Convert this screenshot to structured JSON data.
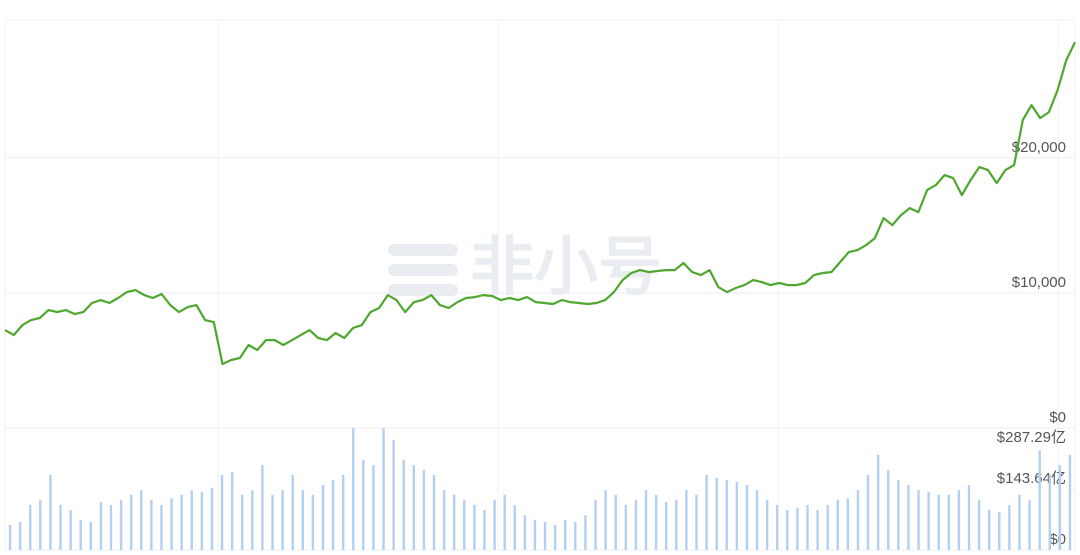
{
  "watermark": "非小号",
  "chart_data": [
    {
      "type": "line",
      "color": "#4ea72e",
      "values": [
        7250,
        6880,
        7620,
        7990,
        8140,
        8730,
        8580,
        8730,
        8440,
        8580,
        9250,
        9470,
        9250,
        9620,
        10060,
        10210,
        9840,
        9620,
        9920,
        9100,
        8580,
        8950,
        9100,
        7990,
        7840,
        4740,
        5030,
        5180,
        6140,
        5770,
        6510,
        6510,
        6140,
        6510,
        6880,
        7250,
        6660,
        6510,
        7030,
        6660,
        7400,
        7620,
        8580,
        8880,
        9840,
        9470,
        8580,
        9320,
        9470,
        9840,
        9100,
        8880,
        9320,
        9620,
        9690,
        9840,
        9770,
        9470,
        9620,
        9470,
        9690,
        9320,
        9250,
        9180,
        9470,
        9320,
        9250,
        9180,
        9250,
        9470,
        10060,
        10950,
        11470,
        11690,
        11540,
        11620,
        11690,
        11690,
        12210,
        11540,
        11320,
        11690,
        10430,
        10060,
        10360,
        10580,
        10950,
        10800,
        10580,
        10730,
        10580,
        10580,
        10730,
        11320,
        11470,
        11540,
        12280,
        13020,
        13170,
        13540,
        14060,
        15540,
        15020,
        15760,
        16280,
        15980,
        17610,
        17980,
        18720,
        18500,
        17240,
        18350,
        19310,
        19090,
        18130,
        19090,
        19460,
        22790,
        23900,
        22940,
        23380,
        25010,
        27230,
        28560
      ],
      "ylim": [
        0,
        30200
      ],
      "yticks": [
        {
          "value": 0,
          "label": "$0"
        },
        {
          "value": 10000,
          "label": "$10,000"
        },
        {
          "value": 20000,
          "label": "$20,000"
        }
      ],
      "grid": true
    },
    {
      "type": "bar",
      "color": "#b3cff1",
      "values": [
        59,
        66,
        106,
        118,
        177,
        106,
        94,
        71,
        66,
        113,
        106,
        118,
        130,
        141,
        118,
        106,
        122,
        130,
        141,
        137,
        146,
        177,
        184,
        130,
        141,
        200,
        130,
        141,
        177,
        141,
        130,
        153,
        165,
        177,
        287,
        212,
        200,
        287,
        259,
        212,
        200,
        188,
        177,
        141,
        130,
        118,
        106,
        94,
        118,
        130,
        106,
        82,
        71,
        66,
        59,
        71,
        66,
        82,
        118,
        141,
        130,
        106,
        118,
        141,
        130,
        113,
        118,
        141,
        130,
        177,
        170,
        165,
        160,
        153,
        141,
        118,
        106,
        94,
        99,
        106,
        94,
        106,
        118,
        122,
        141,
        177,
        224,
        188,
        165,
        153,
        141,
        137,
        130,
        130,
        141,
        153,
        118,
        94,
        89,
        106,
        130,
        118,
        235,
        177,
        200,
        224
      ],
      "ylim": [
        0,
        287.29
      ],
      "yticks": [
        {
          "value": 0,
          "label": "$0"
        },
        {
          "value": 143.64,
          "label": "$143.64亿"
        },
        {
          "value": 287.29,
          "label": "$287.29亿"
        }
      ],
      "grid": false
    }
  ]
}
